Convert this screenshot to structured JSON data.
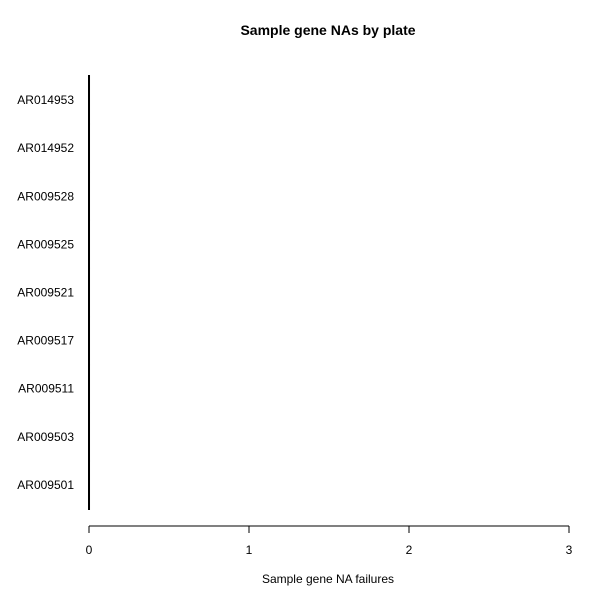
{
  "chart_data": {
    "type": "bar",
    "orientation": "horizontal",
    "title": "Sample gene NAs by plate",
    "xlabel": "Sample gene NA failures",
    "ylabel": "",
    "categories": [
      "AR014953",
      "AR014952",
      "AR009528",
      "AR009525",
      "AR009521",
      "AR009517",
      "AR009511",
      "AR009503",
      "AR009501"
    ],
    "values": [
      0,
      0,
      0,
      0,
      0,
      0,
      0,
      0,
      0
    ],
    "xlim": [
      0,
      3
    ],
    "x_ticks": [
      0,
      1,
      2,
      3
    ],
    "grid": false,
    "legend": "none",
    "colors": {
      "axis": "#000000",
      "bar": "#000000",
      "text": "#000000",
      "background": "#ffffff"
    }
  }
}
